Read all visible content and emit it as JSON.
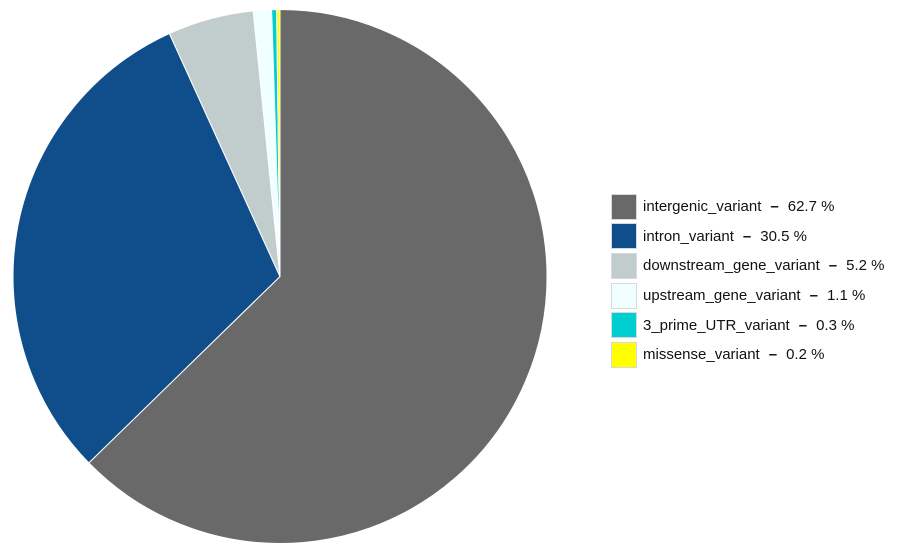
{
  "chart_data": {
    "type": "pie",
    "slices": [
      {
        "label": "intergenic_variant",
        "value": 62.7,
        "value_text": "62.7 %",
        "color": "#696969"
      },
      {
        "label": "intron_variant",
        "value": 30.5,
        "value_text": "30.5 %",
        "color": "#104e8b"
      },
      {
        "label": "downstream_gene_variant",
        "value": 5.2,
        "value_text": "5.2 %",
        "color": "#c1cdcd"
      },
      {
        "label": "upstream_gene_variant",
        "value": 1.1,
        "value_text": "1.1 %",
        "color": "#f0ffff"
      },
      {
        "label": "3_prime_UTR_variant",
        "value": 0.3,
        "value_text": "0.3 %",
        "color": "#00ced1"
      },
      {
        "label": "missense_variant",
        "value": 0.2,
        "value_text": "0.2 %",
        "color": "#ffff00"
      }
    ],
    "legend": {
      "placement": "right",
      "separator": "–"
    }
  }
}
